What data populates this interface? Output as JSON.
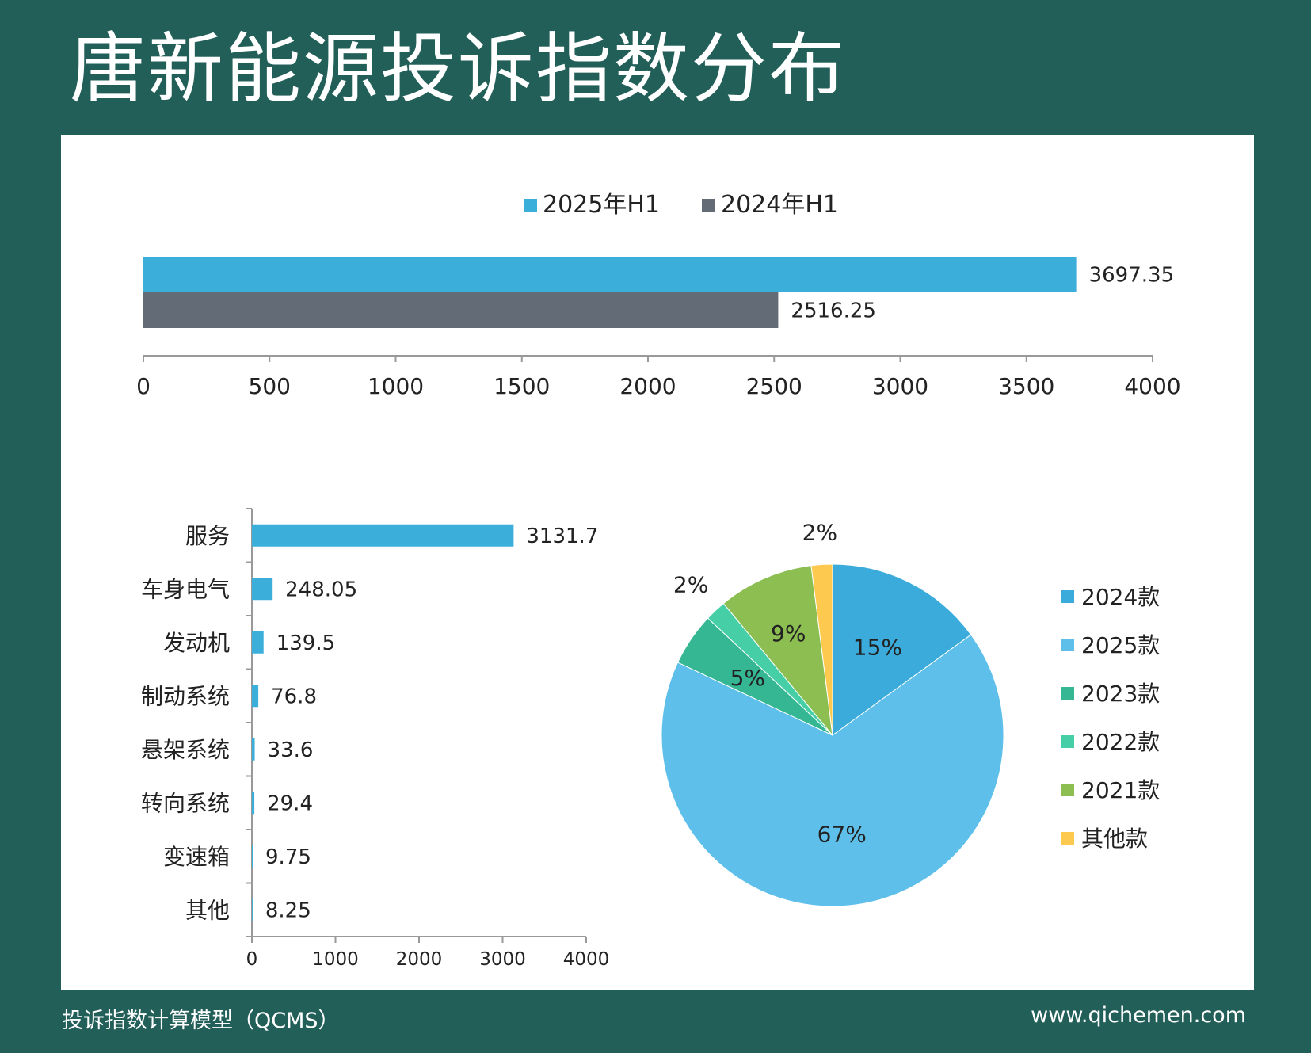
{
  "title": "唐新能源投诉指数分布",
  "footer": {
    "left": "投诉指数计算模型（QCMS）",
    "right": "www.qichemen.com"
  },
  "chart_data": [
    {
      "type": "bar",
      "orientation": "horizontal",
      "series": [
        {
          "name": "2025年H1",
          "values": [
            3697.35
          ],
          "color": "#3baed9",
          "labels": [
            "3697.35"
          ]
        },
        {
          "name": "2024年H1",
          "values": [
            2516.25
          ],
          "color": "#636b77",
          "labels": [
            "2516.25"
          ]
        }
      ],
      "xlim": [
        0,
        4000
      ],
      "xticks": [
        "0",
        "500",
        "1000",
        "1500",
        "2000",
        "2500",
        "3000",
        "3500",
        "4000"
      ],
      "legend": "top-center"
    },
    {
      "type": "bar",
      "orientation": "horizontal",
      "categories": [
        "服务",
        "车身电气",
        "发动机",
        "制动系统",
        "悬架系统",
        "转向系统",
        "变速箱",
        "其他"
      ],
      "values": [
        3131.7,
        248.05,
        139.5,
        76.8,
        33.6,
        29.4,
        9.75,
        8.25
      ],
      "value_labels": [
        "3131.7",
        "248.05",
        "139.5",
        "76.8",
        "33.6",
        "29.4",
        "9.75",
        "8.25"
      ],
      "color": "#3baed9",
      "xlim": [
        0,
        4000
      ],
      "xticks": [
        "0",
        "1000",
        "2000",
        "3000",
        "4000"
      ]
    },
    {
      "type": "pie",
      "slices": [
        {
          "name": "2024款",
          "value": 15,
          "label": "15%",
          "color": "#3aabda"
        },
        {
          "name": "2025款",
          "value": 67,
          "label": "67%",
          "color": "#5dbfea"
        },
        {
          "name": "2023款",
          "value": 5,
          "label": "5%",
          "color": "#36b794"
        },
        {
          "name": "2022款",
          "value": 2,
          "label": "2%",
          "color": "#46cfa7"
        },
        {
          "name": "2021款",
          "value": 9,
          "label": "9%",
          "color": "#8cbe52"
        },
        {
          "name": "其他款",
          "value": 2,
          "label": "2%",
          "color": "#fdc94f"
        }
      ],
      "legend": "right"
    }
  ]
}
